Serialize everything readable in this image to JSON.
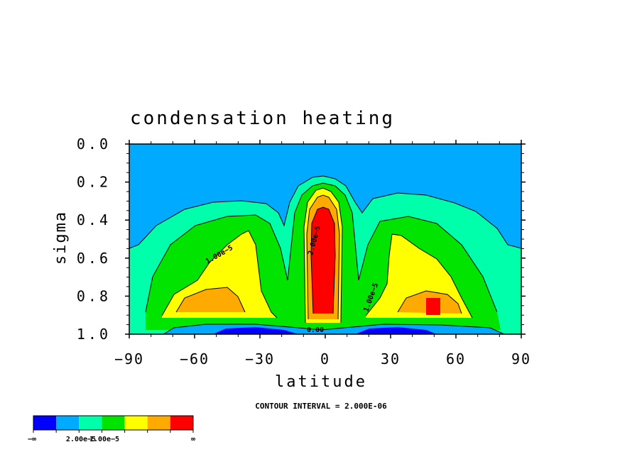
{
  "chart_data": {
    "type": "heatmap",
    "title": "condensation heating",
    "xlabel": "latitude",
    "ylabel": "sigma",
    "x_ticks": [
      "−90",
      "−60",
      "−30",
      "0",
      "30",
      "60",
      "90"
    ],
    "x_tick_values": [
      -90,
      -60,
      -30,
      0,
      30,
      60,
      90
    ],
    "y_ticks": [
      "0.0",
      "0.2",
      "0.4",
      "0.6",
      "0.8",
      "1.0"
    ],
    "y_tick_values": [
      0.0,
      0.2,
      0.4,
      0.6,
      0.8,
      1.0
    ],
    "xlim": [
      -90,
      90
    ],
    "ylim": [
      1.0,
      0.0
    ],
    "contour_interval_text": "CONTOUR INTERVAL = 2.000E-06",
    "contour_labels": [
      "1.00e−5",
      "2.00e−5",
      "1.00e−5",
      "1.00e−5",
      "0.00"
    ],
    "colorbar": {
      "colors": [
        "#0000ff",
        "#00aaff",
        "#00ffaa",
        "#00e400",
        "#ffff00",
        "#ffaa00",
        "#ff0000"
      ],
      "labels": [
        "−∞",
        "2.00e−5",
        "1.00e−5",
        "∞"
      ]
    },
    "field_samples": [
      {
        "lat": 0,
        "sigma": 0.5,
        "level": "max (≥2.0e-5)"
      },
      {
        "lat": -45,
        "sigma": 0.85,
        "level": "high"
      },
      {
        "lat": 50,
        "sigma": 0.86,
        "level": "max"
      },
      {
        "lat": -40,
        "sigma": 0.97,
        "level": "min (negative)"
      },
      {
        "lat": 40,
        "sigma": 0.97,
        "level": "min (negative)"
      },
      {
        "lat": 0,
        "sigma": 0.1,
        "level": "near zero"
      }
    ]
  }
}
